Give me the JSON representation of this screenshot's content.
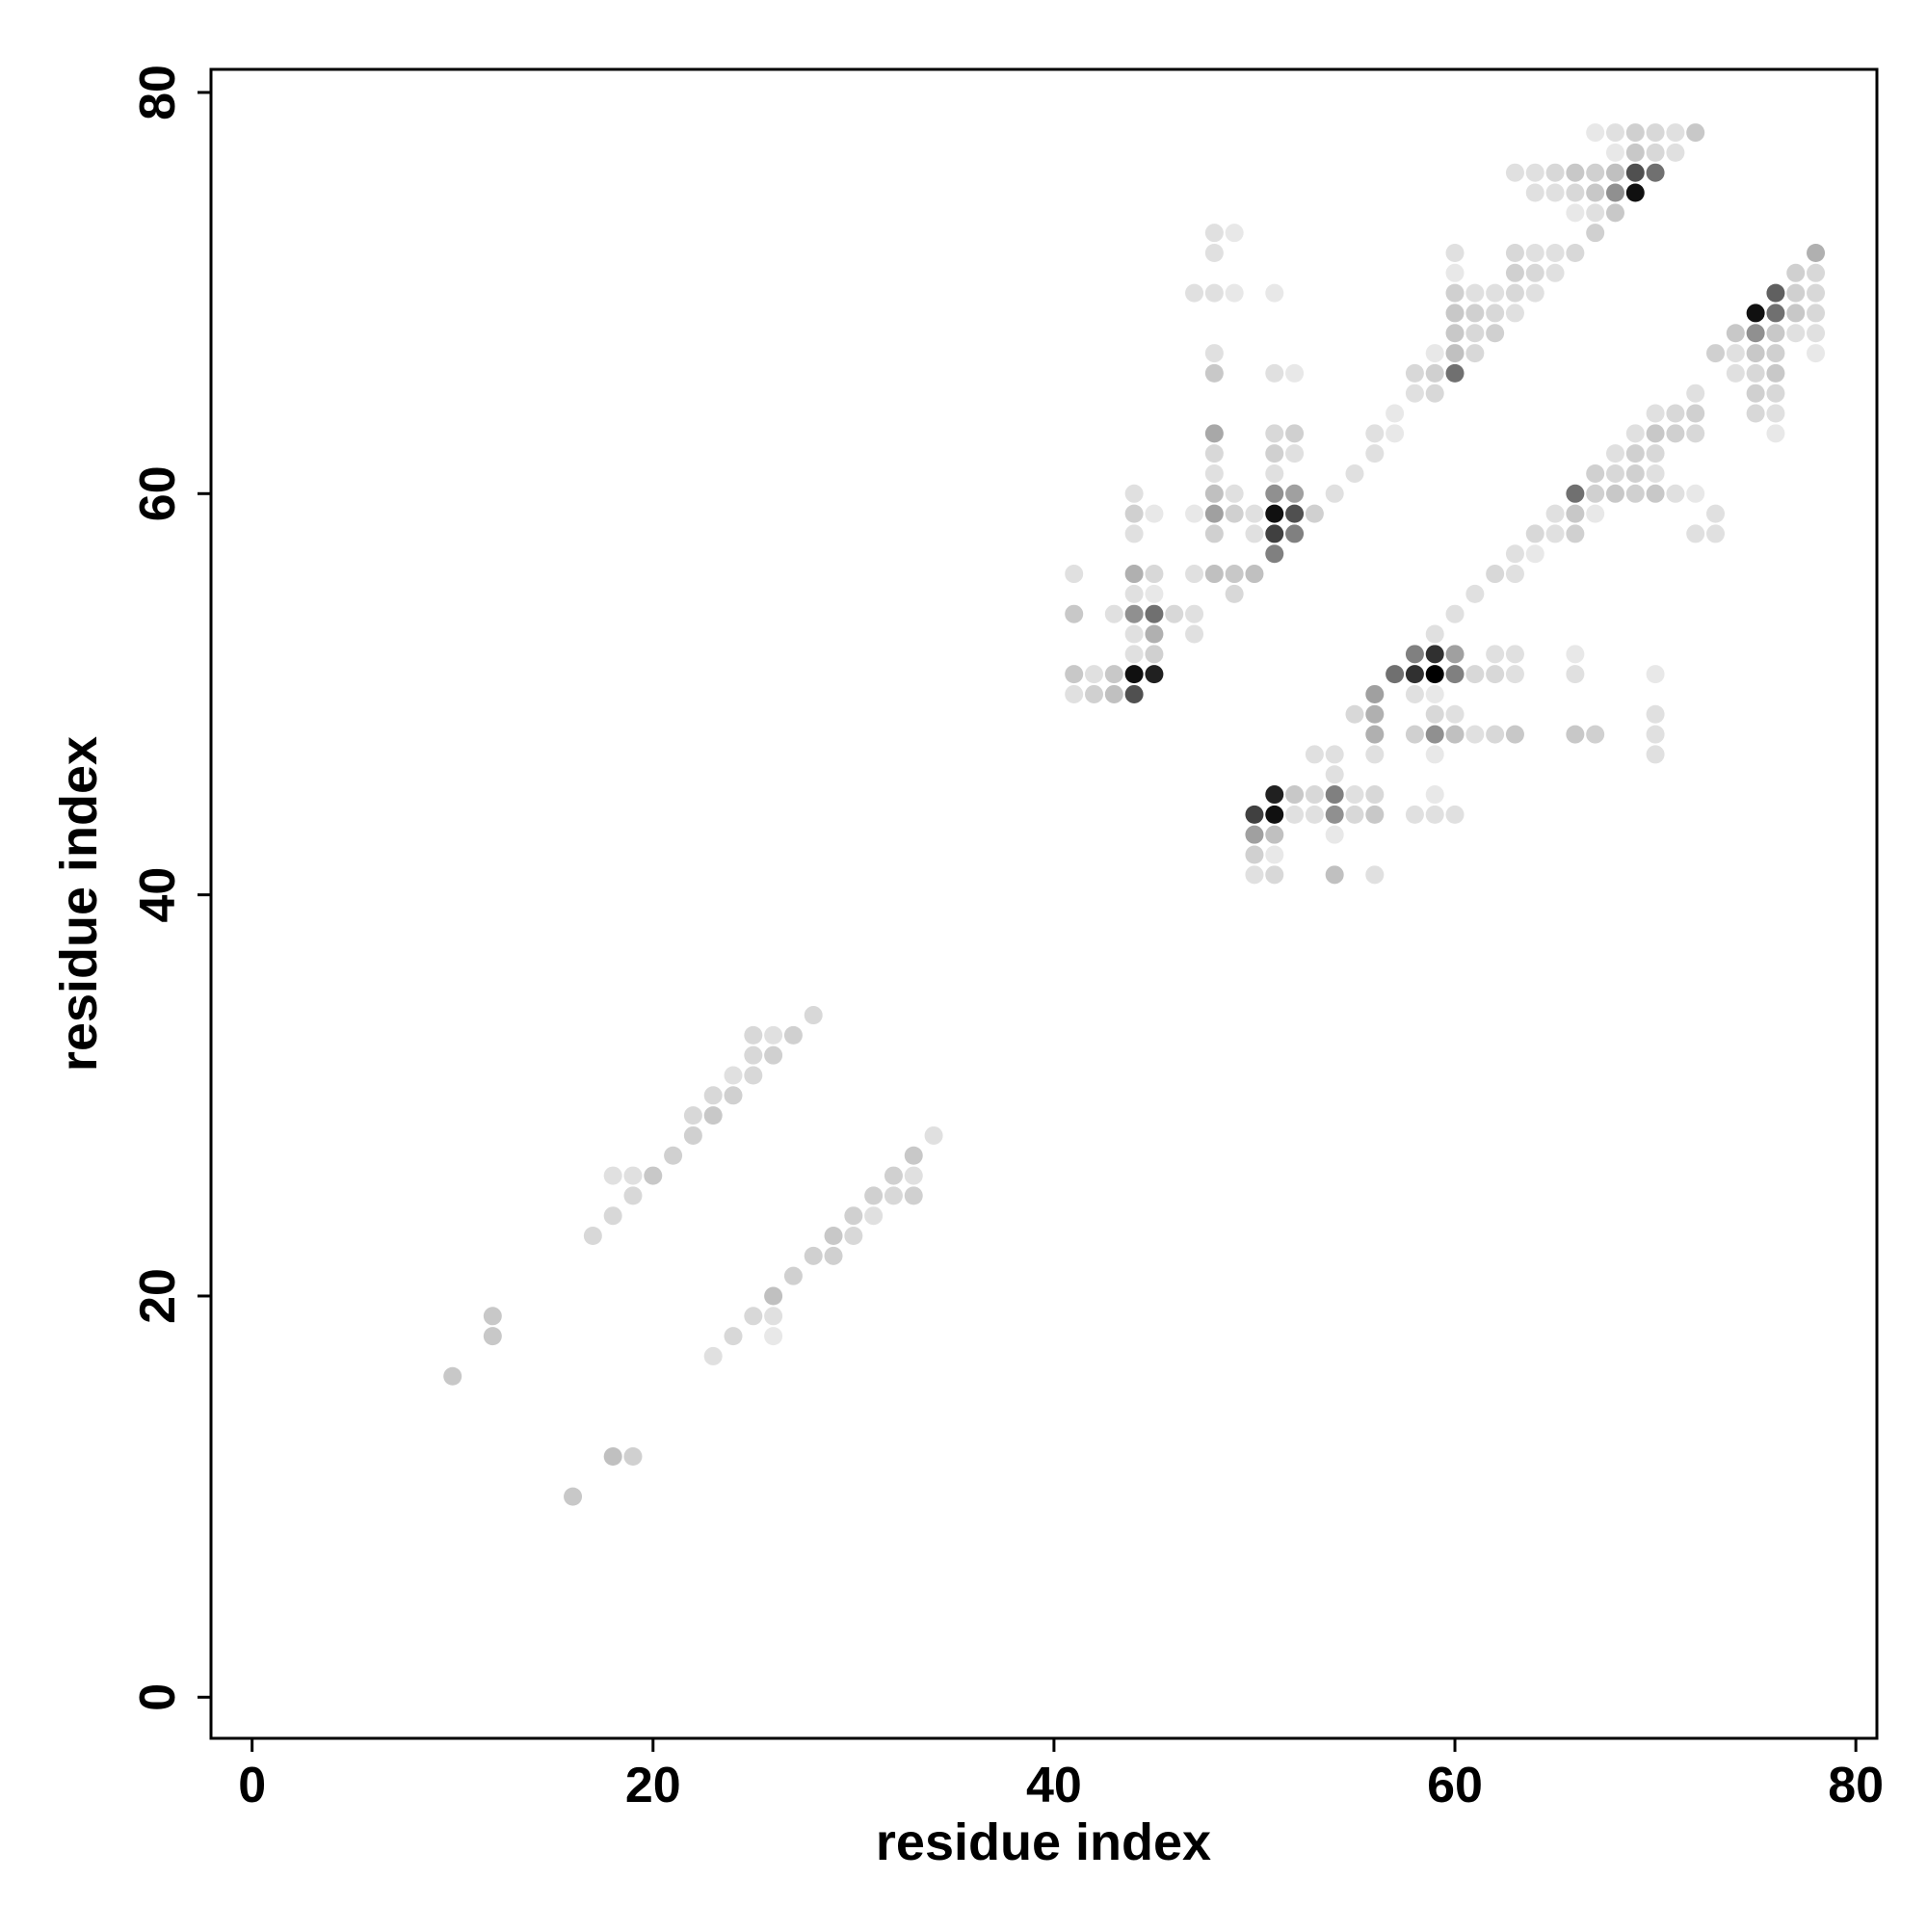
{
  "chart_data": {
    "type": "scatter",
    "xlabel": "residue index",
    "ylabel": "residue index",
    "xlim": [
      -2.05,
      81.05
    ],
    "ylim": [
      -2.05,
      81.15
    ],
    "xticks": [
      0,
      20,
      40,
      60,
      80
    ],
    "yticks": [
      0,
      20,
      40,
      60,
      80
    ],
    "series": [
      {
        "x": [
          10,
          12,
          12,
          16,
          18,
          19,
          17,
          18,
          18,
          19,
          19,
          20,
          21,
          22,
          22,
          23,
          23,
          24,
          24,
          25,
          25,
          25,
          26,
          26,
          27,
          28,
          23,
          24,
          25,
          26,
          26,
          26,
          27,
          28,
          29,
          29,
          30,
          30,
          31,
          31,
          32,
          32,
          33,
          33,
          33,
          34,
          67,
          68,
          69,
          70,
          71,
          72,
          68,
          69,
          70,
          71,
          63,
          64,
          65,
          66,
          67,
          68,
          69,
          70,
          64,
          65,
          66,
          67,
          68,
          69,
          66,
          67,
          68,
          48,
          49,
          67,
          48,
          60,
          63,
          64,
          65,
          66,
          78,
          60,
          63,
          64,
          65,
          77,
          78,
          47,
          48,
          49,
          51,
          60,
          61,
          62,
          63,
          64,
          76,
          77,
          78,
          60,
          61,
          62,
          63,
          75,
          76,
          77,
          78,
          60,
          61,
          62,
          74,
          75,
          76,
          77,
          78,
          48,
          59,
          60,
          61,
          73,
          74,
          75,
          76,
          78,
          48,
          51,
          52,
          58,
          59,
          60,
          74,
          75,
          76,
          58,
          59,
          72,
          75,
          76,
          57,
          70,
          71,
          72,
          75,
          76,
          48,
          51,
          52,
          56,
          57,
          69,
          70,
          71,
          72,
          76,
          48,
          51,
          52,
          56,
          68,
          69,
          70,
          48,
          51,
          55,
          67,
          68,
          69,
          70,
          44,
          48,
          49,
          51,
          52,
          54,
          66,
          67,
          68,
          69,
          70,
          71,
          72,
          44,
          45,
          47,
          48,
          49,
          50,
          51,
          52,
          53,
          65,
          66,
          67,
          73,
          44,
          48,
          50,
          51,
          52,
          64,
          65,
          66,
          72,
          73,
          51,
          63,
          64,
          41,
          44,
          45,
          47,
          48,
          49,
          50,
          62,
          63,
          44,
          45,
          49,
          61,
          41,
          43,
          44,
          45,
          46,
          47,
          60,
          44,
          45,
          47,
          59,
          44,
          45,
          58,
          59,
          60,
          62,
          63,
          66,
          41,
          42,
          43,
          44,
          45,
          57,
          58,
          59,
          60,
          61,
          62,
          63,
          66,
          70,
          41,
          42,
          43,
          44,
          56,
          58,
          59,
          55,
          56,
          59,
          60,
          70,
          56,
          58,
          59,
          60,
          61,
          62,
          63,
          66,
          67,
          70,
          53,
          54,
          56,
          59,
          70,
          54,
          51,
          52,
          53,
          54,
          55,
          56,
          59,
          50,
          51,
          52,
          53,
          54,
          55,
          56,
          58,
          59,
          60,
          50,
          51,
          54,
          50,
          51,
          50,
          51,
          54,
          56
        ],
        "values": [
          16,
          19,
          18,
          10,
          12,
          12,
          23,
          24,
          26,
          26,
          25,
          26,
          27,
          28,
          29,
          29,
          30,
          30,
          31,
          31,
          32,
          33,
          33,
          32,
          33,
          34,
          17,
          18,
          19,
          19,
          18,
          20,
          21,
          22,
          22,
          23,
          23,
          24,
          24,
          25,
          25,
          26,
          26,
          25,
          27,
          28,
          78,
          78,
          78,
          78,
          78,
          78,
          77,
          77,
          77,
          77,
          76,
          76,
          76,
          76,
          76,
          76,
          76,
          76,
          75,
          75,
          75,
          75,
          75,
          75,
          74,
          74,
          74,
          73,
          73,
          73,
          72,
          72,
          72,
          72,
          72,
          72,
          72,
          71,
          71,
          71,
          71,
          71,
          71,
          70,
          70,
          70,
          70,
          70,
          70,
          70,
          70,
          70,
          70,
          70,
          70,
          69,
          69,
          69,
          69,
          69,
          69,
          69,
          69,
          68,
          68,
          68,
          68,
          68,
          68,
          68,
          68,
          67,
          67,
          67,
          67,
          67,
          67,
          67,
          67,
          67,
          66,
          66,
          66,
          66,
          66,
          66,
          66,
          66,
          66,
          65,
          65,
          65,
          65,
          65,
          64,
          64,
          64,
          64,
          64,
          64,
          63,
          63,
          63,
          63,
          63,
          63,
          63,
          63,
          63,
          63,
          62,
          62,
          62,
          62,
          62,
          62,
          62,
          61,
          61,
          61,
          61,
          61,
          61,
          61,
          60,
          60,
          60,
          60,
          60,
          60,
          60,
          60,
          60,
          60,
          60,
          60,
          60,
          59,
          59,
          59,
          59,
          59,
          59,
          59,
          59,
          59,
          59,
          59,
          59,
          59,
          58,
          58,
          58,
          58,
          58,
          58,
          58,
          58,
          58,
          58,
          57,
          57,
          57,
          56,
          56,
          56,
          56,
          56,
          56,
          56,
          56,
          56,
          55,
          55,
          55,
          55,
          54,
          54,
          54,
          54,
          54,
          54,
          54,
          53,
          53,
          53,
          53,
          52,
          52,
          52,
          52,
          52,
          52,
          52,
          52,
          51,
          51,
          51,
          51,
          51,
          51,
          51,
          51,
          51,
          51,
          51,
          51,
          51,
          51,
          50,
          50,
          50,
          50,
          50,
          50,
          50,
          49,
          49,
          49,
          49,
          49,
          48,
          48,
          48,
          48,
          48,
          48,
          48,
          48,
          48,
          48,
          47,
          47,
          47,
          47,
          47,
          46,
          45,
          45,
          45,
          45,
          45,
          45,
          45,
          44,
          44,
          44,
          44,
          44,
          44,
          44,
          44,
          44,
          44,
          43,
          43,
          43,
          42,
          42,
          41,
          41,
          41,
          41
        ],
        "colors": [
          "#c8c8c8",
          "#c8c8c8",
          "#c8c8c8",
          "#c8c8c8",
          "#c0c0c0",
          "#d0d0d0",
          "#d8d8d8",
          "#d8d8d8",
          "#e0e0e0",
          "#e0e0e0",
          "#d8d8d8",
          "#c8c8c8",
          "#d0d0d0",
          "#d0d0d0",
          "#d8d8d8",
          "#c8c8c8",
          "#d8d8d8",
          "#d0d0d0",
          "#e0e0e0",
          "#d8d8d8",
          "#d8d8d8",
          "#d8d8d8",
          "#e0e0e0",
          "#d0d0d0",
          "#d0d0d0",
          "#d8d8d8",
          "#e0e0e0",
          "#d8d8d8",
          "#d8d8d8",
          "#e0e0e0",
          "#e8e8e8",
          "#c0c0c0",
          "#d0d0d0",
          "#d0d0d0",
          "#d0d0d0",
          "#c8c8c8",
          "#d8d8d8",
          "#d0d0d0",
          "#e0e0e0",
          "#d0d0d0",
          "#d8d8d8",
          "#d0d0d0",
          "#e0e0e0",
          "#d0d0d0",
          "#c8c8c8",
          "#e0e0e0",
          "#e8e8e8",
          "#e0e0e0",
          "#d0d0d0",
          "#d8d8d8",
          "#e0e0e0",
          "#c8c8c8",
          "#e8e8e8",
          "#c8c8c8",
          "#d8d8d8",
          "#e0e0e0",
          "#e0e0e0",
          "#e0e0e0",
          "#d8d8d8",
          "#c8c8c8",
          "#d0d0d0",
          "#c0c0c0",
          "#505050",
          "#707070",
          "#e0e0e0",
          "#e0e0e0",
          "#d8d8d8",
          "#c8c8c8",
          "#909090",
          "#101010",
          "#e8e8e8",
          "#e0e0e0",
          "#c8c8c8",
          "#e0e0e0",
          "#e8e8e8",
          "#d0d0d0",
          "#e0e0e0",
          "#e0e0e0",
          "#d8d8d8",
          "#e0e0e0",
          "#e0e0e0",
          "#d8d8d8",
          "#b0b0b0",
          "#e8e8e8",
          "#d0d0d0",
          "#d8d8d8",
          "#e0e0e0",
          "#d0d0d0",
          "#d8d8d8",
          "#e0e0e0",
          "#e0e0e0",
          "#e8e8e8",
          "#e8e8e8",
          "#d0d0d0",
          "#e0e0e0",
          "#e0e0e0",
          "#d8d8d8",
          "#e0e0e0",
          "#606060",
          "#d0d0d0",
          "#d8d8d8",
          "#c8c8c8",
          "#d0d0d0",
          "#d8d8d8",
          "#e0e0e0",
          "#101010",
          "#707070",
          "#c8c8c8",
          "#d8d8d8",
          "#c8c8c8",
          "#d8d8d8",
          "#d0d0d0",
          "#c8c8c8",
          "#909090",
          "#c8c8c8",
          "#e0e0e0",
          "#e0e0e0",
          "#e0e0e0",
          "#e8e8e8",
          "#c0c0c0",
          "#d8d8d8",
          "#d0d0d0",
          "#e0e0e0",
          "#c8c8c8",
          "#d0d0d0",
          "#e8e8e8",
          "#c8c8c8",
          "#e0e0e0",
          "#e8e8e8",
          "#d8d8d8",
          "#d0d0d0",
          "#707070",
          "#e0e0e0",
          "#d8d8d8",
          "#c8c8c8",
          "#e0e0e0",
          "#d8d8d8",
          "#e0e0e0",
          "#d0d0d0",
          "#d8d8d8",
          "#e8e8e8",
          "#e0e0e0",
          "#d8d8d8",
          "#d0d0d0",
          "#d8d8d8",
          "#e0e0e0",
          "#a8a8a8",
          "#d8d8d8",
          "#d0d0d0",
          "#e0e0e0",
          "#e8e8e8",
          "#e0e0e0",
          "#c8c8c8",
          "#d0d0d0",
          "#d8d8d8",
          "#e8e8e8",
          "#d8d8d8",
          "#d0d0d0",
          "#e0e0e0",
          "#e0e0e0",
          "#e0e0e0",
          "#d0d0d0",
          "#d8d8d8",
          "#e0e0e0",
          "#e0e0e0",
          "#e0e0e0",
          "#d0d0d0",
          "#d8d8d8",
          "#d0d0d0",
          "#e0e0e0",
          "#e0e0e0",
          "#c0c0c0",
          "#e0e0e0",
          "#909090",
          "#a0a0a0",
          "#e0e0e0",
          "#707070",
          "#d0d0d0",
          "#c8c8c8",
          "#d0d0d0",
          "#c8c8c8",
          "#e0e0e0",
          "#e8e8e8",
          "#d0d0d0",
          "#e8e8e8",
          "#e8e8e8",
          "#a0a0a0",
          "#d0d0d0",
          "#e0e0e0",
          "#101010",
          "#505050",
          "#d0d0d0",
          "#e0e0e0",
          "#c8c8c8",
          "#e8e8e8",
          "#e0e0e0",
          "#e0e0e0",
          "#d0d0d0",
          "#e0e0e0",
          "#404040",
          "#808080",
          "#d8d8d8",
          "#e0e0e0",
          "#d0d0d0",
          "#e0e0e0",
          "#e0e0e0",
          "#808080",
          "#e0e0e0",
          "#e8e8e8",
          "#e0e0e0",
          "#b0b0b0",
          "#d8d8d8",
          "#e0e0e0",
          "#c0c0c0",
          "#c8c8c8",
          "#c0c0c0",
          "#d8d8d8",
          "#e0e0e0",
          "#e0e0e0",
          "#e8e8e8",
          "#d8d8d8",
          "#e0e0e0",
          "#c8c8c8",
          "#e0e0e0",
          "#909090",
          "#707070",
          "#d8d8d8",
          "#e0e0e0",
          "#e0e0e0",
          "#e0e0e0",
          "#b0b0b0",
          "#e0e0e0",
          "#e0e0e0",
          "#e0e0e0",
          "#d0d0d0",
          "#808080",
          "#303030",
          "#a0a0a0",
          "#e0e0e0",
          "#e0e0e0",
          "#e8e8e8",
          "#c8c8c8",
          "#e0e0e0",
          "#c8c8c8",
          "#101010",
          "#202020",
          "#707070",
          "#303030",
          "#000000",
          "#808080",
          "#d8d8d8",
          "#d8d8d8",
          "#e0e0e0",
          "#e0e0e0",
          "#e8e8e8",
          "#e0e0e0",
          "#d0d0d0",
          "#c0c0c0",
          "#505050",
          "#a0a0a0",
          "#e0e0e0",
          "#e8e8e8",
          "#d8d8d8",
          "#b0b0b0",
          "#d8d8d8",
          "#e0e0e0",
          "#e0e0e0",
          "#b0b0b0",
          "#d0d0d0",
          "#909090",
          "#c0c0c0",
          "#e0e0e0",
          "#d8d8d8",
          "#c8c8c8",
          "#c8c8c8",
          "#d0d0d0",
          "#e0e0e0",
          "#e0e0e0",
          "#e0e0e0",
          "#e0e0e0",
          "#e8e8e8",
          "#e0e0e0",
          "#e0e0e0",
          "#202020",
          "#c8c8c8",
          "#d8d8d8",
          "#808080",
          "#e0e0e0",
          "#d8d8d8",
          "#e8e8e8",
          "#404040",
          "#101010",
          "#e0e0e0",
          "#e0e0e0",
          "#909090",
          "#d8d8d8",
          "#c8c8c8",
          "#e0e0e0",
          "#e0e0e0",
          "#e0e0e0",
          "#a0a0a0",
          "#c0c0c0",
          "#e8e8e8",
          "#d0d0d0",
          "#e8e8e8",
          "#e0e0e0",
          "#d8d8d8",
          "#c0c0c0",
          "#e0e0e0"
        ]
      }
    ]
  }
}
